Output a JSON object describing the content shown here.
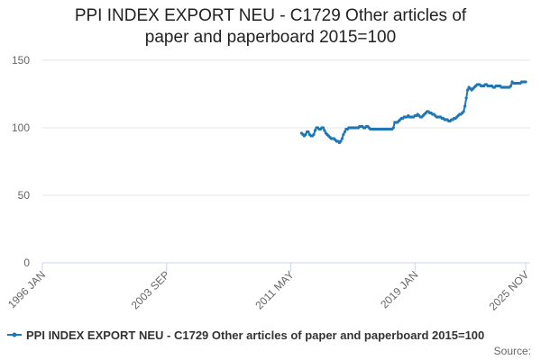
{
  "chart_data": {
    "type": "line",
    "title": "PPI INDEX EXPORT NEU - C1729 Other articles of paper and paperboard 2015=100",
    "source": "Source:",
    "xlim": [
      "1996-01",
      "2025-11"
    ],
    "xticks": [
      {
        "value": "1996-01",
        "label": "1996 JAN"
      },
      {
        "value": "2003-09",
        "label": "2003 SEP"
      },
      {
        "value": "2011-05",
        "label": "2011 MAY"
      },
      {
        "value": "2019-01",
        "label": "2019 JAN"
      },
      {
        "value": "2025-11",
        "label": "2025 NOV"
      }
    ],
    "ylim": [
      0,
      150
    ],
    "yticks": [
      0,
      50,
      100,
      150
    ],
    "grid": true,
    "legend": "bottom",
    "x": [
      "2012-01",
      "2012-02",
      "2012-03",
      "2012-04",
      "2012-05",
      "2012-06",
      "2012-07",
      "2012-08",
      "2012-09",
      "2012-10",
      "2012-11",
      "2012-12",
      "2013-01",
      "2013-02",
      "2013-03",
      "2013-04",
      "2013-05",
      "2013-06",
      "2013-07",
      "2013-08",
      "2013-09",
      "2013-10",
      "2013-11",
      "2013-12",
      "2014-01",
      "2014-02",
      "2014-03",
      "2014-04",
      "2014-05",
      "2014-06",
      "2014-07",
      "2014-08",
      "2014-09",
      "2014-10",
      "2014-11",
      "2014-12",
      "2015-01",
      "2015-02",
      "2015-03",
      "2015-04",
      "2015-05",
      "2015-06",
      "2015-07",
      "2015-08",
      "2015-09",
      "2015-10",
      "2015-11",
      "2015-12",
      "2016-01",
      "2016-02",
      "2016-03",
      "2016-04",
      "2016-05",
      "2016-06",
      "2016-07",
      "2016-08",
      "2016-09",
      "2016-10",
      "2016-11",
      "2016-12",
      "2017-01",
      "2017-02",
      "2017-03",
      "2017-04",
      "2017-05",
      "2017-06",
      "2017-07",
      "2017-08",
      "2017-09",
      "2017-10",
      "2017-11",
      "2017-12",
      "2018-01",
      "2018-02",
      "2018-03",
      "2018-04",
      "2018-05",
      "2018-06",
      "2018-07",
      "2018-08",
      "2018-09",
      "2018-10",
      "2018-11",
      "2018-12",
      "2019-01",
      "2019-02",
      "2019-03",
      "2019-04",
      "2019-05",
      "2019-06",
      "2019-07",
      "2019-08",
      "2019-09",
      "2019-10",
      "2019-11",
      "2019-12",
      "2020-01",
      "2020-02",
      "2020-03",
      "2020-04",
      "2020-05",
      "2020-06",
      "2020-07",
      "2020-08",
      "2020-09",
      "2020-10",
      "2020-11",
      "2020-12",
      "2021-01",
      "2021-02",
      "2021-03",
      "2021-04",
      "2021-05",
      "2021-06",
      "2021-07",
      "2021-08",
      "2021-09",
      "2021-10",
      "2021-11",
      "2021-12",
      "2022-01",
      "2022-02",
      "2022-03",
      "2022-04",
      "2022-05",
      "2022-06",
      "2022-07",
      "2022-08",
      "2022-09",
      "2022-10",
      "2022-11",
      "2022-12",
      "2023-01",
      "2023-02",
      "2023-03",
      "2023-04",
      "2023-05",
      "2023-06",
      "2023-07",
      "2023-08",
      "2023-09",
      "2023-10",
      "2023-11",
      "2023-12",
      "2024-01",
      "2024-02",
      "2024-03",
      "2024-04",
      "2024-05",
      "2024-06",
      "2024-07",
      "2024-08",
      "2024-09",
      "2024-10",
      "2024-11",
      "2024-12",
      "2025-01",
      "2025-02",
      "2025-03",
      "2025-04",
      "2025-05",
      "2025-06",
      "2025-07",
      "2025-08",
      "2025-09",
      "2025-10",
      "2025-11"
    ],
    "series": [
      {
        "name": "PPI INDEX EXPORT NEU - C1729 Other articles of paper and paperboard 2015=100",
        "color": "#1f77b4",
        "values": [
          96,
          95,
          94,
          95,
          97,
          97,
          95,
          94,
          94,
          95,
          98,
          100,
          100,
          99,
          99,
          100,
          100,
          98,
          96,
          95,
          94,
          93,
          92,
          92,
          92,
          91,
          90,
          90,
          89,
          90,
          92,
          95,
          97,
          99,
          99,
          100,
          100,
          100,
          100,
          100,
          100,
          100,
          100,
          101,
          101,
          101,
          100,
          100,
          101,
          101,
          100,
          99,
          99,
          99,
          99,
          99,
          99,
          99,
          99,
          99,
          99,
          99,
          99,
          99,
          99,
          99,
          99,
          99,
          100,
          104,
          104,
          104,
          105,
          106,
          107,
          107,
          108,
          108,
          108,
          109,
          108,
          108,
          108,
          108,
          109,
          109,
          110,
          109,
          108,
          108,
          109,
          110,
          111,
          112,
          112,
          111,
          111,
          110,
          110,
          109,
          108,
          108,
          108,
          108,
          107,
          107,
          106,
          106,
          106,
          105,
          105,
          106,
          106,
          107,
          107,
          108,
          109,
          110,
          110,
          111,
          112,
          116,
          122,
          128,
          130,
          129,
          128,
          129,
          130,
          131,
          132,
          132,
          132,
          131,
          131,
          131,
          132,
          132,
          131,
          131,
          131,
          131,
          130,
          130,
          131,
          131,
          131,
          131,
          130,
          130,
          130,
          130,
          130,
          130,
          130,
          131,
          134,
          133,
          133,
          133,
          133,
          133,
          133,
          134,
          134,
          134,
          134
        ]
      }
    ]
  }
}
